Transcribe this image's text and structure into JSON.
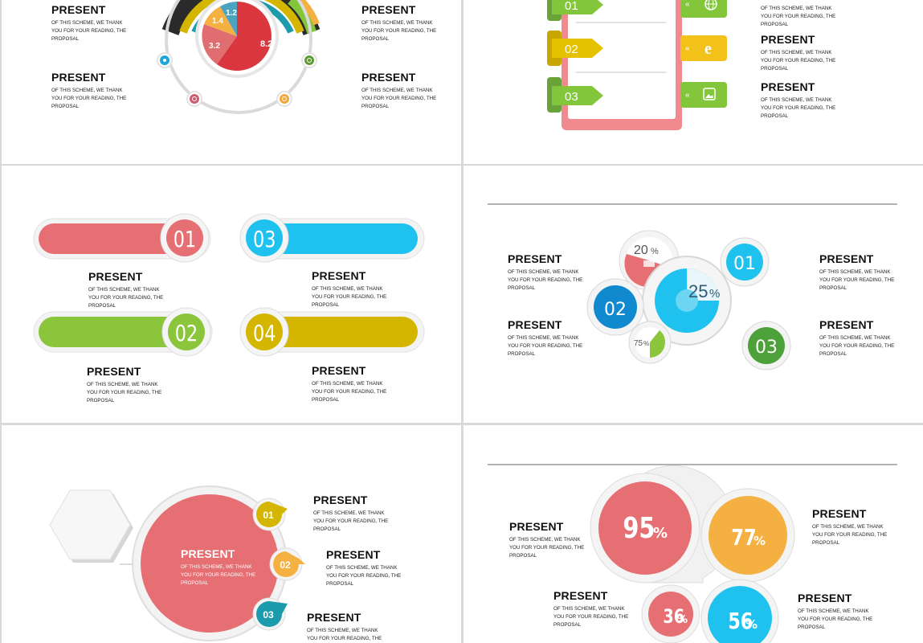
{
  "heading": "PRESENT",
  "body": "OF THIS SCHEME, WE THANK YOU FOR YOUR READING, THE PROPOSAL",
  "colors": {
    "red": "#e06d70",
    "blue": "#1fc2ee",
    "green": "#83c63b",
    "yellow": "#d4b600",
    "orange": "#f5b042",
    "teal": "#1b9bab"
  },
  "slide1": {
    "pie_labels": [
      "8.2",
      "3.2",
      "1.4",
      "1.2"
    ],
    "icons": [
      "gear-icon",
      "clock-icon",
      "refresh-icon",
      "target-icon"
    ]
  },
  "slide2": {
    "tabs": [
      "01",
      "02",
      "03"
    ],
    "icons": [
      "globe-icon",
      "browser-e-icon",
      "image-icon"
    ],
    "chevron": "«"
  },
  "slide3": {
    "pills": [
      "01",
      "03",
      "02",
      "04"
    ]
  },
  "slide4": {
    "big_pct": "25",
    "small_pct_1": "20",
    "small_pct_2": "75",
    "pct_sign": "%",
    "bubbles": [
      "01",
      "02",
      "03"
    ]
  },
  "slide5": {
    "markers": [
      "01",
      "02",
      "03"
    ]
  },
  "slide6": {
    "values": [
      "95",
      "77",
      "36",
      "56"
    ],
    "pct_sign": "%"
  }
}
